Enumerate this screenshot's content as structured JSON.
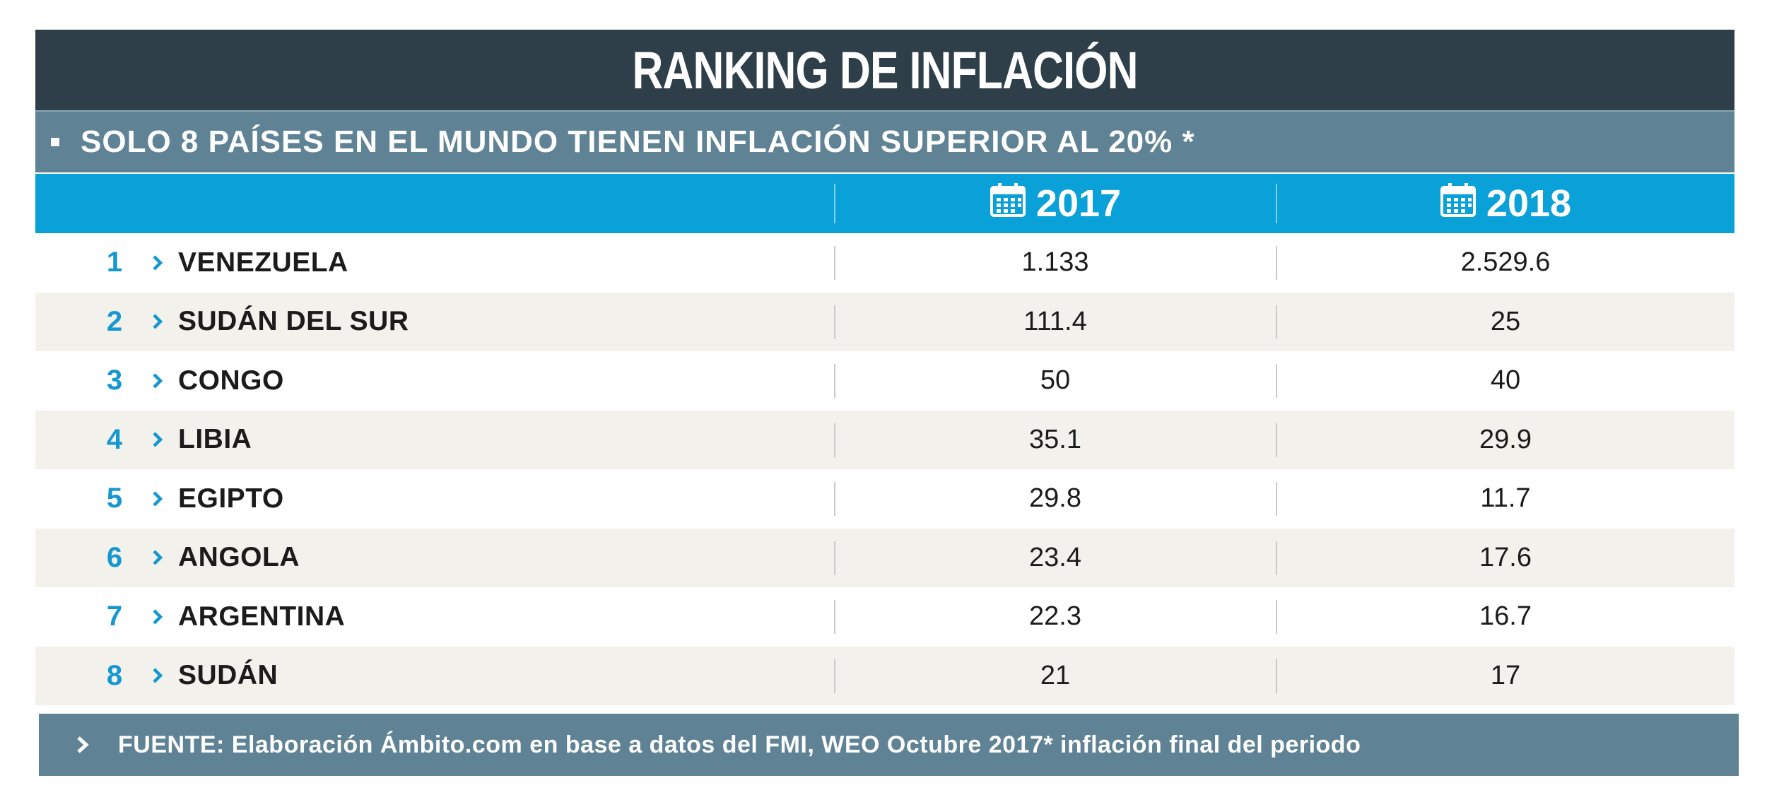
{
  "title": "RANKING DE INFLACIÓN",
  "subtitle": "SOLO 8 PAÍSES EN EL MUNDO TIENEN INFLACIÓN SUPERIOR AL 20% *",
  "footer": "FUENTE: Elaboración Ámbito.com en base a datos del FMI, WEO Octubre 2017* inflación final del periodo",
  "colors": {
    "title_bg": "#2f3f49",
    "subtitle_bg": "#5f8294",
    "header_bg": "#0aa0d8",
    "rank_color": "#1597d0",
    "alt_row_bg": "#f2f1ec"
  },
  "chart_data": {
    "type": "table",
    "columns": [
      "2017",
      "2018"
    ],
    "header_icon": "calendar-icon",
    "rows": [
      {
        "rank": "1",
        "country": "VENEZUELA",
        "values": [
          "1.133",
          "2.529.6"
        ]
      },
      {
        "rank": "2",
        "country": "SUDÁN DEL SUR",
        "values": [
          "111.4",
          "25"
        ]
      },
      {
        "rank": "3",
        "country": "CONGO",
        "values": [
          "50",
          "40"
        ]
      },
      {
        "rank": "4",
        "country": "LIBIA",
        "values": [
          "35.1",
          "29.9"
        ]
      },
      {
        "rank": "5",
        "country": "EGIPTO",
        "values": [
          "29.8",
          "11.7"
        ]
      },
      {
        "rank": "6",
        "country": "ANGOLA",
        "values": [
          "23.4",
          "17.6"
        ]
      },
      {
        "rank": "7",
        "country": "ARGENTINA",
        "values": [
          "22.3",
          "16.7"
        ]
      },
      {
        "rank": "8",
        "country": "SUDÁN",
        "values": [
          "21",
          "17"
        ]
      }
    ]
  }
}
